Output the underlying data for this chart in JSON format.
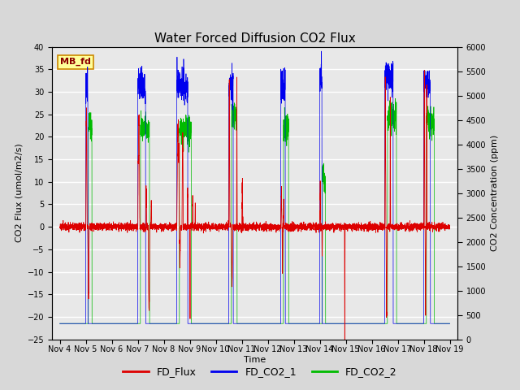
{
  "title": "Water Forced Diffusion CO2 Flux",
  "xlabel": "Time",
  "ylabel_left": "CO2 Flux (umol/m2/s)",
  "ylabel_right": "CO2 Concentration (ppm)",
  "ylim_left": [
    -25,
    40
  ],
  "ylim_right": [
    0,
    6000
  ],
  "xtick_labels": [
    "Nov 4",
    "Nov 5",
    "Nov 6",
    "Nov 7",
    "Nov 8",
    "Nov 9",
    "Nov 10",
    "Nov 11",
    "Nov 12",
    "Nov 13",
    "Nov 14",
    "Nov 15",
    "Nov 16",
    "Nov 17",
    "Nov 18",
    "Nov 19"
  ],
  "annotation_text": "MB_fd",
  "annotation_bg": "#FFFF99",
  "annotation_border": "#CC8800",
  "flux_color": "#DD0000",
  "co2_1_color": "#0000EE",
  "co2_2_color": "#00BB00",
  "background_color": "#D8D8D8",
  "plot_bg_color": "#E8E8E8",
  "grid_color": "#CCCCCC",
  "title_fontsize": 11,
  "label_fontsize": 8,
  "tick_fontsize": 7,
  "legend_fontsize": 9,
  "n_points": 5000
}
